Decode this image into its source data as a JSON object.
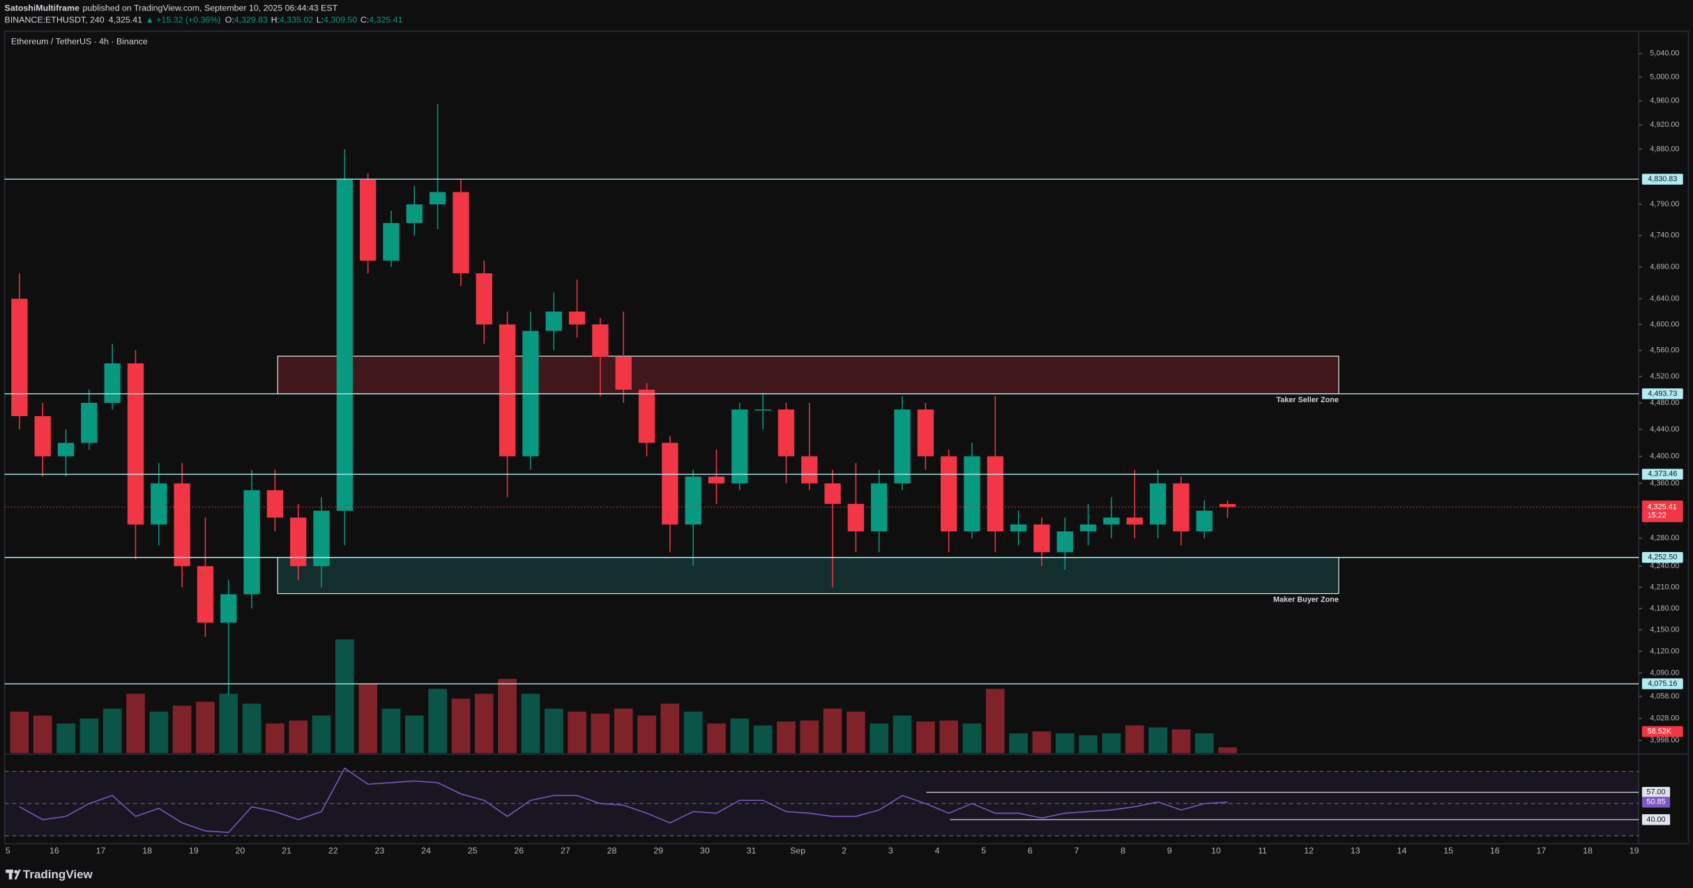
{
  "header": {
    "author": "SatoshiMultiframe",
    "published": "published on TradingView.com, September 10, 2025 06:44:43 EST",
    "symbol": "BINANCE:ETHUSDT, 240",
    "price": "4,325.41",
    "change": "▲ +15.32 (+0.36%)",
    "ohlc": [
      {
        "key": "O:",
        "value": "4,329.83"
      },
      {
        "key": "H:",
        "value": "4,335.02"
      },
      {
        "key": "L:",
        "value": "4,309.50"
      },
      {
        "key": "C:",
        "value": "4,325.41"
      }
    ]
  },
  "chart_data": {
    "type": "candlestick",
    "title": "Ethereum / TetherUS · 4h · Binance",
    "log_scale": true,
    "grid": false,
    "up_color": "#089981",
    "down_color": "#f23645",
    "x_labels": [
      "5",
      "16",
      "17",
      "18",
      "19",
      "20",
      "21",
      "22",
      "23",
      "24",
      "25",
      "26",
      "27",
      "28",
      "29",
      "30",
      "31",
      "Sep",
      "2",
      "3",
      "4",
      "5",
      "6",
      "7",
      "8",
      "9",
      "10",
      "11",
      "12",
      "13",
      "14",
      "15",
      "16",
      "17",
      "18",
      "19"
    ],
    "open": [
      4640,
      4460,
      4400,
      4420,
      4480,
      4540,
      4300,
      4360,
      4240,
      4160,
      4200,
      4350,
      4310,
      4240,
      4320,
      4830,
      4700,
      4760,
      4790,
      4810,
      4680,
      4600,
      4400,
      4590,
      4620,
      4600,
      4550,
      4500,
      4420,
      4300,
      4370,
      4360,
      4470,
      4470,
      4400,
      4360,
      4330,
      4290,
      4360,
      4470,
      4400,
      4290,
      4400,
      4290,
      4300,
      4260,
      4290,
      4300,
      4310,
      4300,
      4360,
      4290,
      4329.83
    ],
    "high": [
      4680,
      4480,
      4440,
      4500,
      4570,
      4560,
      4390,
      4390,
      4310,
      4220,
      4380,
      4380,
      4330,
      4340,
      4880,
      4840,
      4780,
      4820,
      4955,
      4830,
      4700,
      4620,
      4620,
      4650,
      4670,
      4610,
      4620,
      4510,
      4430,
      4380,
      4410,
      4480,
      4495,
      4480,
      4480,
      4380,
      4390,
      4380,
      4490,
      4480,
      4410,
      4420,
      4490,
      4320,
      4310,
      4310,
      4330,
      4340,
      4380,
      4380,
      4370,
      4335,
      4335.02
    ],
    "low": [
      4440,
      4370,
      4370,
      4410,
      4470,
      4250,
      4270,
      4210,
      4140,
      4060,
      4180,
      4290,
      4220,
      4210,
      4270,
      4680,
      4690,
      4740,
      4750,
      4660,
      4570,
      4340,
      4380,
      4560,
      4580,
      4490,
      4480,
      4400,
      4260,
      4240,
      4330,
      4350,
      4440,
      4360,
      4350,
      4210,
      4260,
      4260,
      4350,
      4380,
      4260,
      4280,
      4260,
      4270,
      4240,
      4235,
      4270,
      4280,
      4280,
      4280,
      4270,
      4280,
      4309.5
    ],
    "close": [
      4460,
      4400,
      4420,
      4480,
      4540,
      4300,
      4360,
      4240,
      4160,
      4200,
      4350,
      4310,
      4240,
      4320,
      4830,
      4700,
      4760,
      4790,
      4810,
      4680,
      4600,
      4400,
      4590,
      4620,
      4600,
      4550,
      4500,
      4420,
      4300,
      4370,
      4360,
      4470,
      4470,
      4400,
      4360,
      4330,
      4290,
      4360,
      4470,
      4400,
      4290,
      4400,
      4290,
      4300,
      4260,
      4290,
      4300,
      4310,
      4300,
      4360,
      4290,
      4320,
      4325.41
    ],
    "ylim": [
      3981,
      5076
    ],
    "yticks": [
      {
        "value": 5040,
        "label": "5,040.00"
      },
      {
        "value": 5000,
        "label": "5,000.00"
      },
      {
        "value": 4960,
        "label": "4,960.00"
      },
      {
        "value": 4920,
        "label": "4,920.00"
      },
      {
        "value": 4880,
        "label": "4,880.00"
      },
      {
        "value": 4790,
        "label": "4,790.00"
      },
      {
        "value": 4740,
        "label": "4,740.00"
      },
      {
        "value": 4690,
        "label": "4,690.00"
      },
      {
        "value": 4640,
        "label": "4,640.00"
      },
      {
        "value": 4600,
        "label": "4,600.00"
      },
      {
        "value": 4560,
        "label": "4,560.00"
      },
      {
        "value": 4520,
        "label": "4,520.00"
      },
      {
        "value": 4480,
        "label": "4,480.00"
      },
      {
        "value": 4440,
        "label": "4,440.00"
      },
      {
        "value": 4400,
        "label": "4,400.00"
      },
      {
        "value": 4360,
        "label": "4,360.00"
      },
      {
        "value": 4280,
        "label": "4,280.00"
      },
      {
        "value": 4240,
        "label": "4,240.00"
      },
      {
        "value": 4210,
        "label": "4,210.00"
      },
      {
        "value": 4180,
        "label": "4,180.00"
      },
      {
        "value": 4150,
        "label": "4,150.00"
      },
      {
        "value": 4120,
        "label": "4,120.00"
      },
      {
        "value": 4090,
        "label": "4,090.00"
      },
      {
        "value": 4058,
        "label": "4,058.00"
      },
      {
        "value": 4028,
        "label": "4,028.00"
      },
      {
        "value": 3998,
        "label": "3,998.00"
      }
    ],
    "levels": [
      {
        "value": 4830.83,
        "label": "4,830.83"
      },
      {
        "value": 4493.73,
        "label": "4,493.73"
      },
      {
        "value": 4373.46,
        "label": "4,373.46"
      },
      {
        "value": 4252.5,
        "label": "4,252.50"
      },
      {
        "value": 4075.16,
        "label": "4,075.16"
      }
    ],
    "zones": [
      {
        "label": "Taker Seller Zone",
        "top": 4551,
        "bottom": 4493.73,
        "color": "#f23645"
      },
      {
        "label": "Maker Buyer Zone",
        "top": 4252.5,
        "bottom": 4201,
        "color": "#26a69a"
      }
    ],
    "current_price": {
      "value": 4325.41,
      "label": "4,325.41",
      "countdown": "15:22"
    },
    "volumes": [
      420000,
      380000,
      300000,
      350000,
      450000,
      600000,
      420000,
      480000,
      520000,
      600000,
      500000,
      300000,
      330000,
      380000,
      1150000,
      700000,
      450000,
      380000,
      650000,
      550000,
      600000,
      750000,
      600000,
      450000,
      420000,
      400000,
      450000,
      380000,
      500000,
      420000,
      300000,
      350000,
      280000,
      320000,
      330000,
      450000,
      420000,
      300000,
      380000,
      320000,
      330000,
      300000,
      650000,
      200000,
      220000,
      200000,
      180000,
      200000,
      280000,
      260000,
      240000,
      200000,
      58520
    ],
    "vlim": [
      0,
      1200000
    ],
    "volume_current": {
      "value": 58520,
      "label": "58.52K"
    },
    "rsi": {
      "values": [
        48,
        40,
        42,
        50,
        55,
        42,
        47,
        38,
        33,
        32,
        48,
        45,
        40,
        45,
        72,
        62,
        63,
        64,
        63,
        56,
        52,
        42,
        52,
        55,
        55,
        50,
        49,
        44,
        38,
        45,
        44,
        52,
        52,
        45,
        44,
        42,
        42,
        46,
        55,
        50,
        44,
        50,
        44,
        44,
        41,
        44,
        45,
        46,
        48,
        51,
        46,
        50,
        50.85
      ],
      "ylim": [
        25,
        80
      ],
      "bands": [
        70,
        50,
        30
      ],
      "color": "#7e57c2",
      "levels": [
        {
          "value": 57,
          "label": "57.00"
        },
        {
          "value": 40,
          "label": "40.00"
        }
      ],
      "current": {
        "value": 50.85,
        "label": "50.85"
      }
    }
  }
}
